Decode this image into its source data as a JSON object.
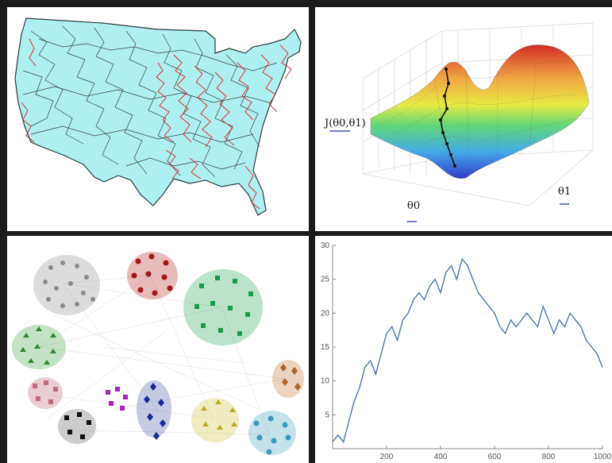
{
  "surface": {
    "zlabel": "J(θ0,θ1)",
    "xlabel": "θ0",
    "ylabel": "θ1"
  },
  "chart_data": {
    "type": "line",
    "title": "",
    "xlabel": "",
    "ylabel": "",
    "xlim": [
      0,
      1000
    ],
    "ylim": [
      0,
      30
    ],
    "xticks": [
      200,
      400,
      600,
      800,
      1000
    ],
    "yticks": [
      5,
      10,
      15,
      20,
      25,
      30
    ],
    "color": "#4a74b5",
    "series": [
      {
        "x": [
          0,
          20,
          40,
          60,
          80,
          100,
          120,
          140,
          160,
          180,
          200,
          220,
          240,
          260,
          280,
          300,
          320,
          340,
          360,
          380,
          400,
          420,
          440,
          460,
          480,
          500,
          520,
          540,
          560,
          580,
          600,
          620,
          640,
          660,
          680,
          700,
          720,
          740,
          760,
          780,
          800,
          820,
          840,
          860,
          880,
          900,
          920,
          940,
          960,
          980,
          1000
        ],
        "values": [
          1,
          2,
          1,
          4,
          7,
          9,
          12,
          13,
          11,
          14,
          17,
          18,
          16,
          19,
          20,
          22,
          23,
          22,
          24,
          25,
          23,
          26,
          27,
          25,
          28,
          27,
          25,
          23,
          22,
          21,
          20,
          18,
          17,
          19,
          18,
          19,
          20,
          19,
          18,
          21,
          19,
          17,
          19,
          18,
          20,
          19,
          18,
          16,
          15,
          14,
          12
        ]
      }
    ]
  }
}
